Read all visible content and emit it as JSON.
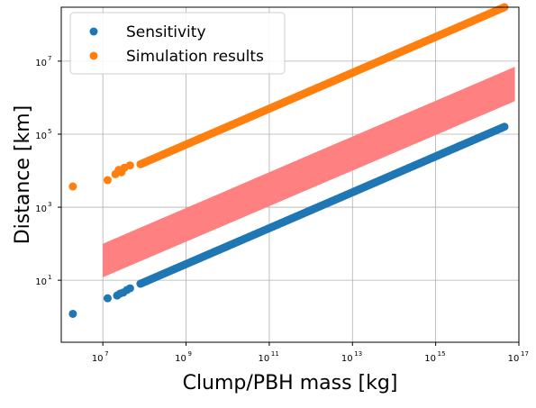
{
  "chart_data": {
    "type": "scatter",
    "title": "",
    "xlabel": "Clump/PBH mass [kg]",
    "ylabel": "Distance [km]",
    "x_scale": "log",
    "y_scale": "log",
    "xlim": [
      1000000.0,
      1e+17
    ],
    "ylim": [
      0.2,
      300000000.0
    ],
    "x_ticks": [
      10000000.0,
      1000000000.0,
      100000000000.0,
      10000000000000.0,
      1000000000000000.0,
      1e+17
    ],
    "y_ticks": [
      10.0,
      1000.0,
      100000.0,
      10000000.0
    ],
    "grid": true,
    "legend_position": "top-left",
    "series": [
      {
        "name": "Sensitivity",
        "color": "#1f77b4",
        "points": [
          [
            1900000.0,
            1.2
          ],
          [
            13000000.0,
            3.2
          ],
          [
            22000000.0,
            3.8
          ],
          [
            26000000.0,
            4.3
          ],
          [
            31000000.0,
            4.6
          ],
          [
            38000000.0,
            5.4
          ],
          [
            45000000.0,
            6.0
          ]
        ],
        "dense_segment": {
          "x_start": 80000000.0,
          "x_end": 4.5e+16,
          "y_start": 8.0,
          "y_end": 160000.0
        }
      },
      {
        "name": "Simulation results",
        "color": "#ff7f0e",
        "points": [
          [
            1900000.0,
            3700
          ],
          [
            13000000.0,
            5500
          ],
          [
            20000000.0,
            8000
          ],
          [
            24000000.0,
            10500
          ],
          [
            28000000.0,
            9000
          ],
          [
            33000000.0,
            12000
          ],
          [
            45000000.0,
            14000
          ]
        ],
        "dense_segment": {
          "x_start": 80000000.0,
          "x_end": 4.5e+16,
          "y_start": 15000,
          "y_end": 300000000.0
        }
      }
    ],
    "band": {
      "color": "#ff8080",
      "x": [
        10000000.0,
        8e+16
      ],
      "upper": [
        100,
        7000000.0
      ],
      "lower": [
        12,
        800000.0
      ]
    }
  }
}
